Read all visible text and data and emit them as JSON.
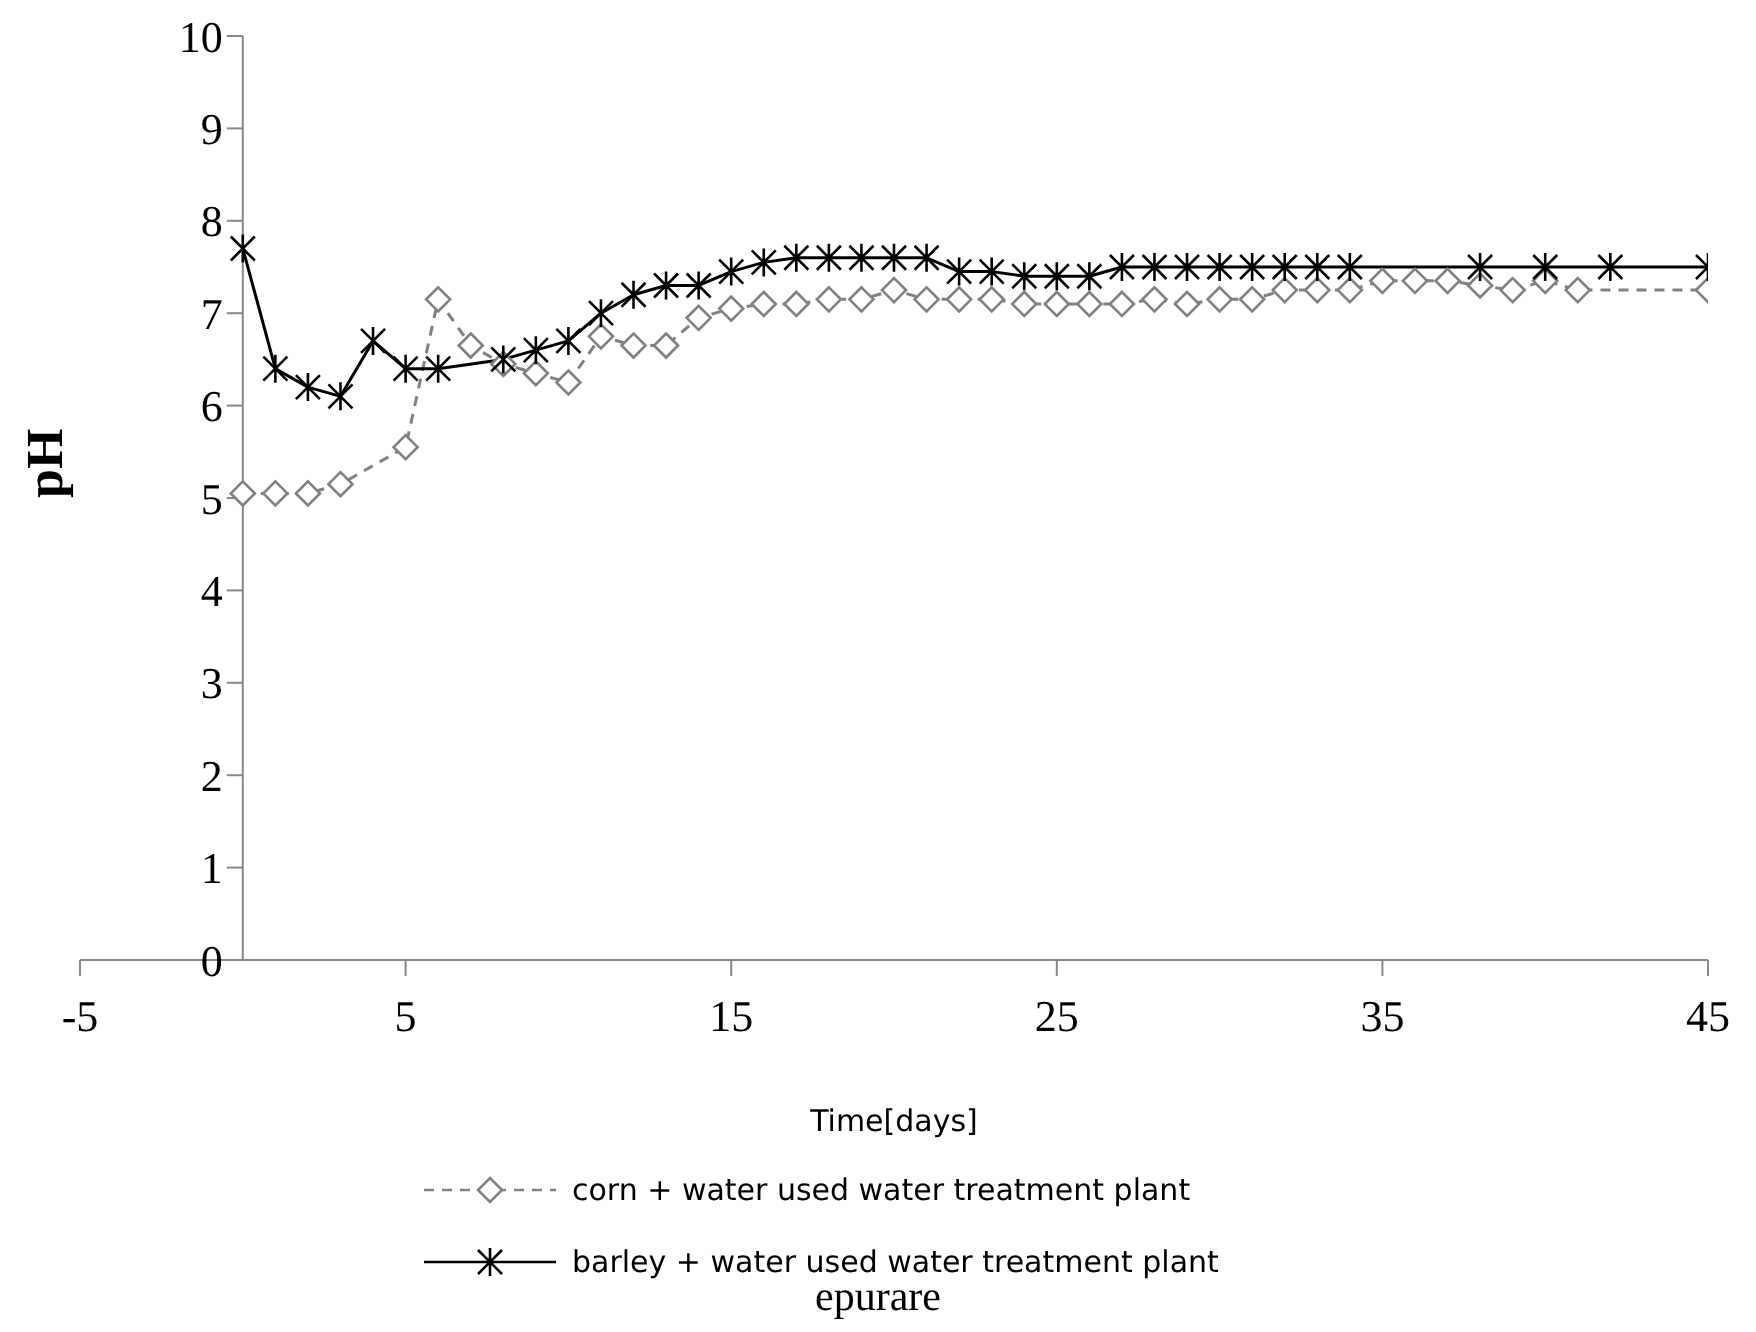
{
  "chart_data": {
    "type": "line",
    "xlabel": "Time[days]",
    "ylabel": "pH",
    "xlim": [
      -5,
      45
    ],
    "xticks": [
      -5,
      5,
      15,
      25,
      35,
      45
    ],
    "ylim": [
      0,
      10
    ],
    "yticks": [
      0,
      1,
      2,
      3,
      4,
      5,
      6,
      7,
      8,
      9,
      10
    ],
    "legend": "bottom",
    "annotations": [
      "epurare"
    ],
    "series": [
      {
        "name": "corn + water used water treatment plant",
        "color": "#808080",
        "marker": "diamond",
        "line_style": "dashed",
        "x": [
          0,
          1,
          2,
          3,
          5,
          6,
          7,
          8,
          9,
          10,
          11,
          12,
          13,
          14,
          15,
          16,
          17,
          18,
          19,
          20,
          21,
          22,
          23,
          24,
          25,
          26,
          27,
          28,
          29,
          30,
          31,
          32,
          33,
          34,
          35,
          36,
          37,
          38,
          39,
          40,
          41,
          45
        ],
        "values": [
          5.05,
          5.05,
          5.05,
          5.15,
          5.55,
          7.15,
          6.65,
          6.45,
          6.35,
          6.25,
          6.75,
          6.65,
          6.65,
          6.95,
          7.05,
          7.1,
          7.1,
          7.15,
          7.15,
          7.25,
          7.15,
          7.15,
          7.15,
          7.1,
          7.1,
          7.1,
          7.1,
          7.15,
          7.1,
          7.15,
          7.15,
          7.25,
          7.25,
          7.25,
          7.35,
          7.35,
          7.35,
          7.3,
          7.25,
          7.35,
          7.25,
          7.25
        ]
      },
      {
        "name": "barley + water used water treatment plant",
        "color": "#000000",
        "marker": "cross",
        "line_style": "solid",
        "x": [
          0,
          1,
          2,
          3,
          4,
          5,
          6,
          8,
          9,
          10,
          11,
          12,
          13,
          14,
          15,
          16,
          17,
          18,
          19,
          20,
          21,
          22,
          23,
          24,
          25,
          26,
          27,
          28,
          29,
          30,
          31,
          32,
          33,
          34,
          38,
          40,
          42,
          45
        ],
        "values": [
          7.7,
          6.4,
          6.2,
          6.1,
          6.7,
          6.4,
          6.4,
          6.5,
          6.6,
          6.7,
          7.0,
          7.2,
          7.3,
          7.3,
          7.45,
          7.55,
          7.6,
          7.6,
          7.6,
          7.6,
          7.6,
          7.45,
          7.45,
          7.4,
          7.4,
          7.4,
          7.5,
          7.5,
          7.5,
          7.5,
          7.5,
          7.5,
          7.5,
          7.5,
          7.5,
          7.5,
          7.5,
          7.5
        ]
      }
    ]
  }
}
